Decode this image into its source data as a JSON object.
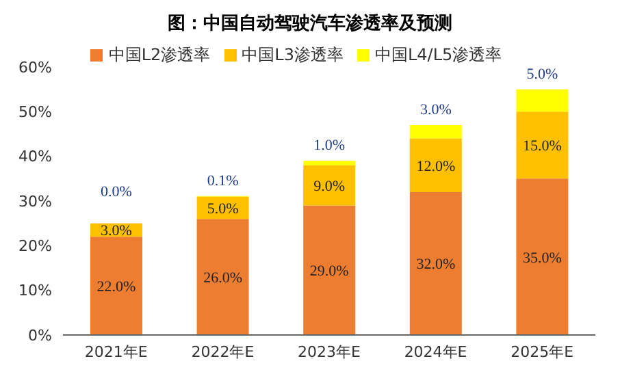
{
  "chart_data": {
    "type": "bar",
    "title": "图：中国自动驾驶汽车渗透率及预测",
    "stacked": true,
    "categories": [
      "2021年E",
      "2022年E",
      "2023年E",
      "2024年E",
      "2025年E"
    ],
    "series": [
      {
        "name": "中国L2渗透率",
        "color": "#ed7d31",
        "values": [
          22,
          26,
          29,
          32,
          35
        ],
        "value_labels": [
          "22.0%",
          "26.0%",
          "29.0%",
          "32.0%",
          "35.0%"
        ]
      },
      {
        "name": "中国L3渗透率",
        "color": "#ffc000",
        "values": [
          3,
          5,
          9,
          12,
          15
        ],
        "value_labels": [
          "3.0%",
          "5.0%",
          "9.0%",
          "12.0%",
          "15.0%"
        ]
      },
      {
        "name": "中国L4/L5渗透率",
        "color": "#ffff00",
        "values": [
          0,
          0.1,
          1,
          3,
          5
        ],
        "value_labels": [
          "0.0%",
          "0.1%",
          "1.0%",
          "3.0%",
          "5.0%"
        ]
      }
    ],
    "ylim": [
      0,
      60
    ],
    "yticks": [
      {
        "value": 0,
        "label": "0%"
      },
      {
        "value": 10,
        "label": "10%"
      },
      {
        "value": 20,
        "label": "20%"
      },
      {
        "value": 30,
        "label": "30%"
      },
      {
        "value": 40,
        "label": "40%"
      },
      {
        "value": 50,
        "label": "50%"
      },
      {
        "value": 60,
        "label": "60%"
      }
    ],
    "grid": false,
    "legend": "top"
  }
}
